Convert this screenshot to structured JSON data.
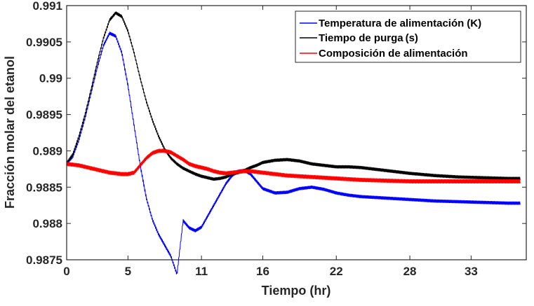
{
  "chart_data": {
    "type": "line",
    "title": "",
    "xlabel": "Tiempo (hr)",
    "ylabel": "Fracción molar del etanol",
    "xlim": [
      0,
      37.5
    ],
    "ylim": [
      0.9875,
      0.991
    ],
    "x_ticks": [
      0,
      5,
      11,
      16,
      22,
      28,
      33
    ],
    "x_tick_labels": [
      "0",
      "5",
      "11",
      "16",
      "22",
      "28",
      "33"
    ],
    "y_ticks": [
      0.9875,
      0.988,
      0.9885,
      0.989,
      0.9895,
      0.99,
      0.9905,
      0.991
    ],
    "y_tick_labels": [
      "0.9875",
      "0.988",
      "0.9885",
      "0.989",
      "0.9895",
      "0.99",
      "0.9905",
      "0.991"
    ],
    "grid": false,
    "legend_position": "top-right",
    "series": [
      {
        "name": "Temperatura de alimentación",
        "unit": "(K)",
        "color": "#0000ff",
        "x": [
          0,
          0.5,
          1,
          1.5,
          2,
          2.5,
          3,
          3.5,
          4,
          4.5,
          5,
          5.5,
          6,
          6.5,
          7,
          7.5,
          8,
          8.5,
          9,
          9.5,
          10,
          10.5,
          11,
          11.5,
          12,
          12.5,
          13,
          13.5,
          14,
          14.5,
          15,
          15.5,
          16,
          17,
          18,
          19,
          20,
          21,
          22,
          23,
          24,
          26,
          28,
          30,
          32,
          34,
          36,
          37
        ],
        "y": [
          0.98883,
          0.98892,
          0.98915,
          0.98945,
          0.9898,
          0.99015,
          0.99045,
          0.99062,
          0.99058,
          0.99035,
          0.9899,
          0.98935,
          0.9888,
          0.98835,
          0.98805,
          0.98785,
          0.9877,
          0.98755,
          0.9873,
          0.98804,
          0.98794,
          0.9879,
          0.98795,
          0.9881,
          0.98825,
          0.9884,
          0.98855,
          0.98866,
          0.98872,
          0.98873,
          0.98868,
          0.98858,
          0.98848,
          0.98842,
          0.98843,
          0.98848,
          0.9885,
          0.98847,
          0.98842,
          0.98839,
          0.98837,
          0.98835,
          0.98833,
          0.98831,
          0.9883,
          0.98829,
          0.98828,
          0.98828
        ]
      },
      {
        "name": "Tiempo de purga",
        "unit": "(s)",
        "color": "#000000",
        "x": [
          0,
          0.5,
          1,
          1.5,
          2,
          2.5,
          3,
          3.5,
          4,
          4.5,
          5,
          5.5,
          6,
          6.5,
          7,
          7.5,
          8,
          8.5,
          9,
          9.5,
          10,
          10.5,
          11,
          11.5,
          12,
          12.5,
          13,
          13.5,
          14,
          14.5,
          15,
          15.5,
          16,
          17,
          18,
          19,
          20,
          21,
          22,
          23,
          24,
          26,
          28,
          30,
          32,
          34,
          36,
          37
        ],
        "y": [
          0.98883,
          0.98895,
          0.9892,
          0.9895,
          0.98985,
          0.99022,
          0.99055,
          0.9908,
          0.9909,
          0.99085,
          0.99065,
          0.99035,
          0.99,
          0.98968,
          0.98942,
          0.9892,
          0.98902,
          0.9889,
          0.98882,
          0.98876,
          0.98872,
          0.98868,
          0.98865,
          0.98863,
          0.98861,
          0.98862,
          0.98864,
          0.98868,
          0.9887,
          0.98873,
          0.98877,
          0.9888,
          0.98884,
          0.98887,
          0.98888,
          0.98886,
          0.98882,
          0.9888,
          0.98878,
          0.98878,
          0.98877,
          0.98873,
          0.98869,
          0.98866,
          0.98864,
          0.98863,
          0.98862,
          0.98862
        ]
      },
      {
        "name": "Composición de alimentación",
        "unit": "",
        "color": "#ff0000",
        "x": [
          0,
          0.5,
          1,
          1.5,
          2,
          2.5,
          3,
          3.5,
          4,
          4.5,
          5,
          5.5,
          6,
          6.5,
          7,
          7.5,
          8,
          8.5,
          9,
          9.5,
          10,
          10.5,
          11,
          11.5,
          12,
          12.5,
          13,
          13.5,
          14,
          14.5,
          15,
          15.5,
          16,
          17,
          18,
          19,
          20,
          21,
          22,
          23,
          24,
          26,
          28,
          30,
          32,
          34,
          36,
          37
        ],
        "y": [
          0.98882,
          0.98881,
          0.9888,
          0.98878,
          0.98876,
          0.98874,
          0.98872,
          0.9887,
          0.98869,
          0.98868,
          0.98868,
          0.9887,
          0.9888,
          0.9889,
          0.98897,
          0.989,
          0.989,
          0.98898,
          0.98893,
          0.98888,
          0.98882,
          0.98879,
          0.98877,
          0.98875,
          0.98872,
          0.9887,
          0.98869,
          0.9887,
          0.98871,
          0.98872,
          0.98872,
          0.98871,
          0.9887,
          0.98868,
          0.98866,
          0.98865,
          0.98864,
          0.98863,
          0.98862,
          0.98861,
          0.9886,
          0.98859,
          0.98858,
          0.98858,
          0.98858,
          0.98858,
          0.98858,
          0.98858
        ]
      }
    ]
  }
}
